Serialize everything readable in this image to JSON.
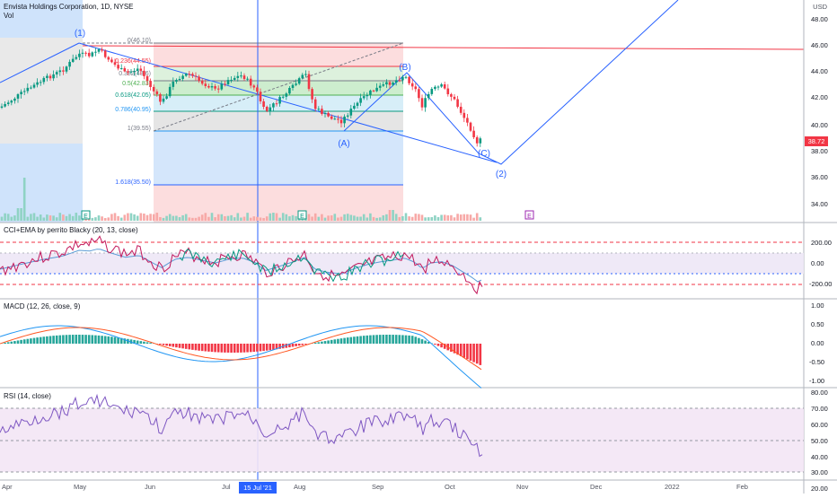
{
  "header": {
    "title": "Envista Holdings Corporation, 1D, NYSE",
    "volume_label": "Vol"
  },
  "currency": "USD",
  "price_axis": {
    "labels": [
      "48.00",
      "46.00",
      "44.00",
      "42.00",
      "40.00",
      "38.00",
      "36.00",
      "34.00"
    ],
    "last_price": "38.72",
    "last_price_color": "#f23645"
  },
  "cci_pane": {
    "title": "CCI+EMA by perrito Blacky (20, 13, close)",
    "labels": [
      "200.00",
      "0.00",
      "-200.00"
    ]
  },
  "macd_pane": {
    "title": "MACD (12, 26, close, 9)",
    "labels": [
      "1.00",
      "0.50",
      "0.00",
      "-0.50",
      "-1.00"
    ]
  },
  "rsi_pane": {
    "title": "RSI (14, close)",
    "labels": [
      "80.00",
      "70.00",
      "60.00",
      "50.00",
      "40.00",
      "30.00",
      "20.00"
    ]
  },
  "time_axis": {
    "labels": [
      "Apr",
      "May",
      "Jun",
      "Jul",
      "Aug",
      "Sep",
      "Oct",
      "Nov",
      "Dec",
      "2022",
      "Feb"
    ],
    "crosshair_label": "15 Jul '21"
  },
  "fib": {
    "levels": [
      {
        "label": "0(46.10)",
        "color": "#787b86"
      },
      {
        "label": "0.236(44.55)",
        "color": "#f23645"
      },
      {
        "label": "0.382(43.6)",
        "color": "#787b86"
      },
      {
        "label": "0.5(42.83)",
        "color": "#4caf50"
      },
      {
        "label": "0.618(42.05)",
        "color": "#089981"
      },
      {
        "label": "0.786(40.95)",
        "color": "#2196f3"
      },
      {
        "label": "1(39.55)",
        "color": "#787b86"
      },
      {
        "label": "1.618(35.50)",
        "color": "#2962ff"
      }
    ]
  },
  "waves": {
    "w1": "(1)",
    "w2": "(2)",
    "wa": "(A)",
    "wb": "(B)",
    "wc": "(C)"
  },
  "markers": {
    "e1": "E",
    "e2": "E",
    "e3": "E"
  },
  "colors": {
    "up": "#089981",
    "down": "#f23645",
    "line": "#2962ff",
    "red_line": "#f23645"
  }
}
